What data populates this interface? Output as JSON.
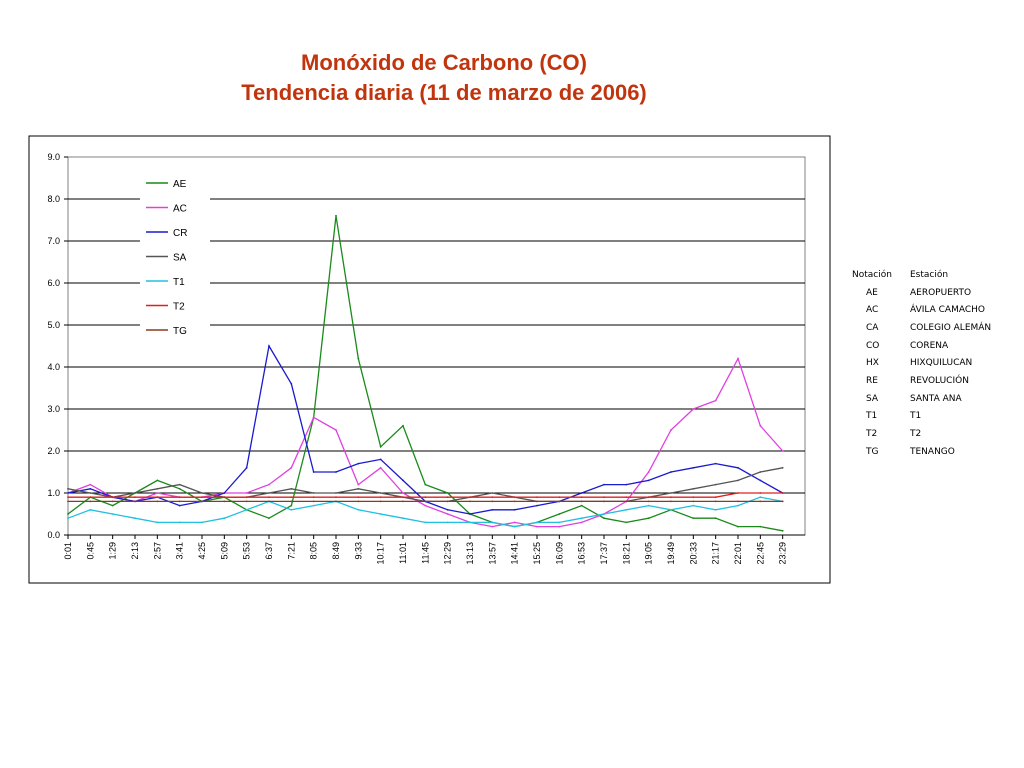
{
  "title_line1": "Monóxido de Carbono (CO)",
  "title_line2": "Tendencia diaria (11 de marzo de 2006)",
  "chart_data": {
    "type": "line",
    "title": "Monóxido de Carbono (CO) Tendencia diaria (11 de marzo de 2006)",
    "xlabel": "",
    "ylabel": "",
    "ylim": [
      0,
      9
    ],
    "yticks": [
      "0.0",
      "1.0",
      "2.0",
      "3.0",
      "4.0",
      "5.0",
      "6.0",
      "7.0",
      "8.0",
      "9.0"
    ],
    "x": [
      "0:01",
      "0:45",
      "1:29",
      "2:13",
      "2:57",
      "3:41",
      "4:25",
      "5:09",
      "5:53",
      "6:37",
      "7:21",
      "8:05",
      "8:49",
      "9:33",
      "10:17",
      "11:01",
      "11:45",
      "12:29",
      "13:13",
      "13:57",
      "14:41",
      "15:25",
      "16:09",
      "16:53",
      "17:37",
      "18:21",
      "19:05",
      "19:49",
      "20:33",
      "21:17",
      "22:01",
      "22:45",
      "23:29"
    ],
    "grid": "horizontal",
    "legend_position": "top-left",
    "series": [
      {
        "name": "AE",
        "color": "#1a8a1a",
        "values": [
          0.5,
          0.9,
          0.7,
          1.0,
          1.3,
          1.1,
          0.8,
          0.9,
          0.6,
          0.4,
          0.7,
          2.8,
          7.6,
          4.2,
          2.1,
          2.6,
          1.2,
          1.0,
          0.5,
          0.3,
          0.2,
          0.3,
          0.5,
          0.7,
          0.4,
          0.3,
          0.4,
          0.6,
          0.4,
          0.4,
          0.2,
          0.2,
          0.1
        ]
      },
      {
        "name": "AC",
        "color": "#e040e0",
        "values": [
          1.0,
          1.2,
          0.9,
          0.8,
          1.0,
          0.9,
          0.9,
          1.0,
          1.0,
          1.2,
          1.6,
          2.8,
          2.5,
          1.2,
          1.6,
          1.0,
          0.7,
          0.5,
          0.3,
          0.2,
          0.3,
          0.2,
          0.2,
          0.3,
          0.5,
          0.8,
          1.5,
          2.5,
          3.0,
          3.2,
          4.2,
          2.6,
          2.0
        ]
      },
      {
        "name": "CR",
        "color": "#1a1ad0",
        "values": [
          1.0,
          1.1,
          0.9,
          0.8,
          0.9,
          0.7,
          0.8,
          1.0,
          1.6,
          4.5,
          3.6,
          1.5,
          1.5,
          1.7,
          1.8,
          1.3,
          0.8,
          0.6,
          0.5,
          0.6,
          0.6,
          0.7,
          0.8,
          1.0,
          1.2,
          1.2,
          1.3,
          1.5,
          1.6,
          1.7,
          1.6,
          1.3,
          1.0
        ]
      },
      {
        "name": "SA",
        "color": "#555555",
        "values": [
          1.1,
          1.0,
          0.9,
          1.0,
          1.1,
          1.2,
          1.0,
          0.9,
          0.9,
          1.0,
          1.1,
          1.0,
          1.0,
          1.1,
          1.0,
          0.9,
          0.8,
          0.8,
          0.9,
          1.0,
          0.9,
          0.8,
          0.8,
          0.8,
          0.8,
          0.8,
          0.9,
          1.0,
          1.1,
          1.2,
          1.3,
          1.5,
          1.6
        ]
      },
      {
        "name": "T1",
        "color": "#20c0e0",
        "values": [
          0.4,
          0.6,
          0.5,
          0.4,
          0.3,
          0.3,
          0.3,
          0.4,
          0.6,
          0.8,
          0.6,
          0.7,
          0.8,
          0.6,
          0.5,
          0.4,
          0.3,
          0.3,
          0.3,
          0.3,
          0.2,
          0.3,
          0.3,
          0.4,
          0.5,
          0.6,
          0.7,
          0.6,
          0.7,
          0.6,
          0.7,
          0.9,
          0.8
        ]
      },
      {
        "name": "T2",
        "color": "#e02020",
        "values": [
          0.9,
          0.9,
          0.9,
          0.9,
          0.9,
          0.9,
          0.9,
          0.9,
          0.9,
          0.9,
          0.9,
          0.9,
          0.9,
          0.9,
          0.9,
          0.9,
          0.9,
          0.9,
          0.9,
          0.9,
          0.9,
          0.9,
          0.9,
          0.9,
          0.9,
          0.9,
          0.9,
          0.9,
          0.9,
          0.9,
          1.0,
          1.0,
          1.0
        ]
      },
      {
        "name": "TG",
        "color": "#8b3a1a",
        "values": [
          0.8,
          0.8,
          0.8,
          0.8,
          0.8,
          0.8,
          0.8,
          0.8,
          0.8,
          0.8,
          0.8,
          0.8,
          0.8,
          0.8,
          0.8,
          0.8,
          0.8,
          0.8,
          0.8,
          0.8,
          0.8,
          0.8,
          0.8,
          0.8,
          0.8,
          0.8,
          0.8,
          0.8,
          0.8,
          0.8,
          0.8,
          0.8,
          0.8
        ]
      }
    ]
  },
  "notation_table": {
    "header": {
      "code": "Notación",
      "name": "Estación"
    },
    "rows": [
      {
        "code": "AE",
        "name": "AEROPUERTO"
      },
      {
        "code": "AC",
        "name": "ÁVILA CAMACHO"
      },
      {
        "code": "CA",
        "name": "COLEGIO ALEMÁN"
      },
      {
        "code": "CO",
        "name": "CORENA"
      },
      {
        "code": "HX",
        "name": "HIXQUILUCAN"
      },
      {
        "code": "RE",
        "name": "REVOLUCIÓN"
      },
      {
        "code": "SA",
        "name": "SANTA ANA"
      },
      {
        "code": "T1",
        "name": "T1"
      },
      {
        "code": "T2",
        "name": "T2"
      },
      {
        "code": "TG",
        "name": "TENANGO"
      }
    ]
  }
}
